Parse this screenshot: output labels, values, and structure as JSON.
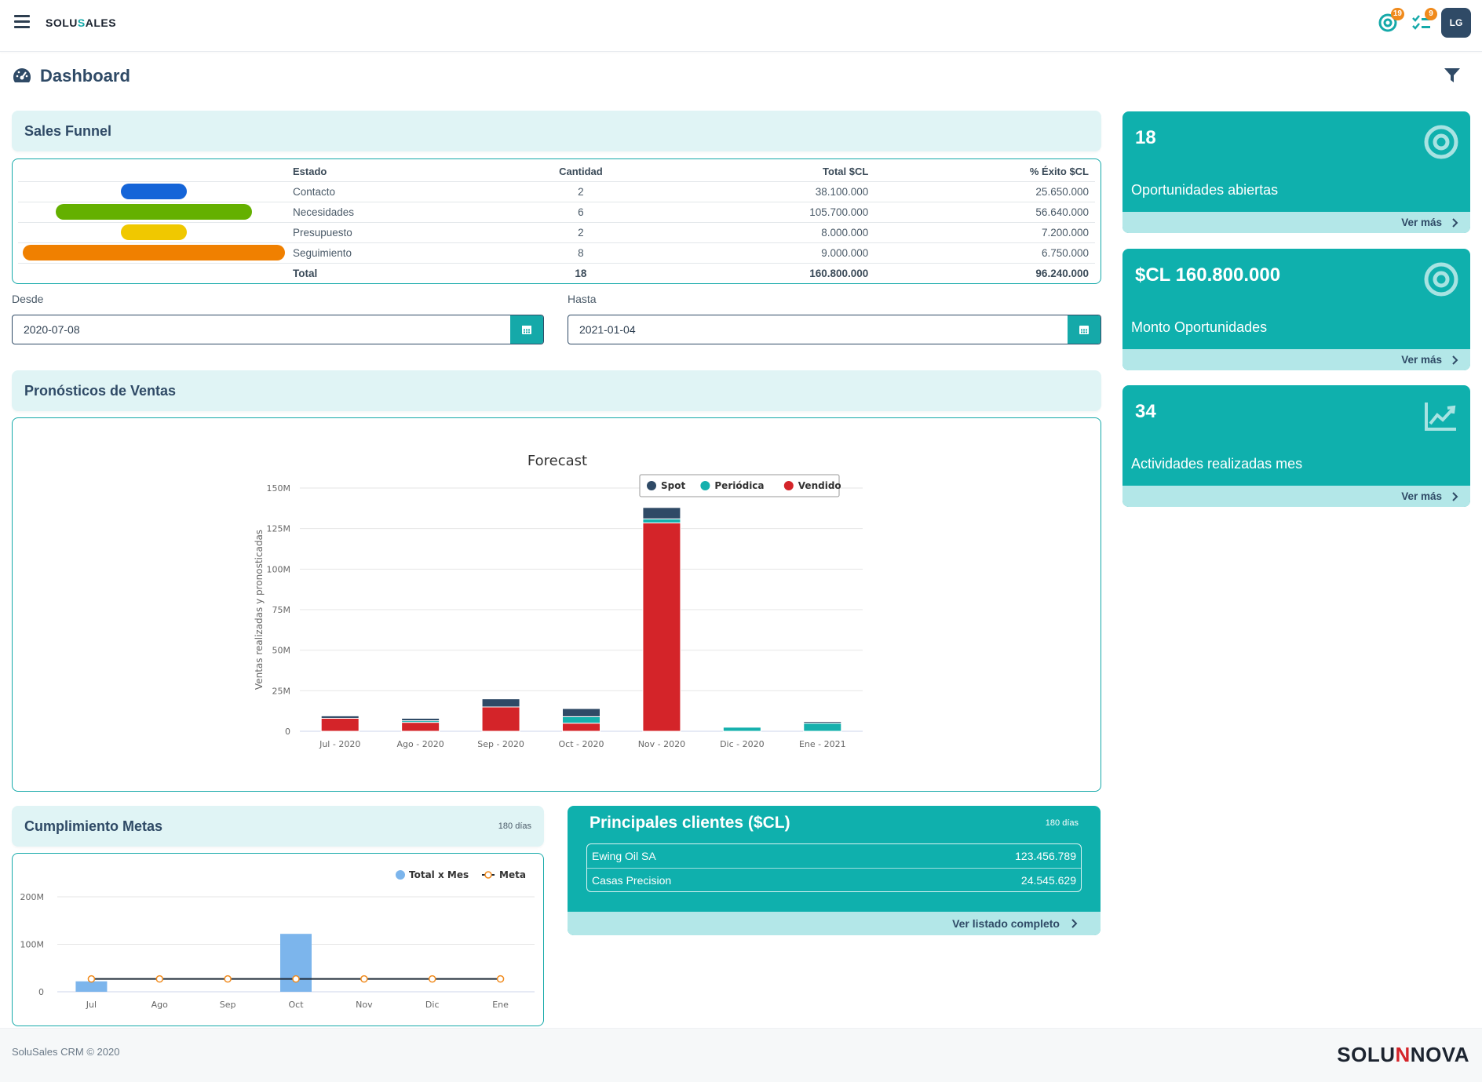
{
  "app": {
    "logo_pre": "SOLU",
    "logo_s": "S",
    "logo_post": "ALES",
    "avatar": "LG",
    "badge_targets": "19",
    "badge_tasks": "9"
  },
  "page": {
    "title": "Dashboard"
  },
  "funnel": {
    "title": "Sales Funnel",
    "headers": [
      "Estado",
      "Cantidad",
      "Total $CL",
      "% Éxito $CL"
    ],
    "rows": [
      {
        "estado": "Contacto",
        "cantidad": "2",
        "total": "38.100.000",
        "exito": "25.650.000",
        "color": "#1565d8",
        "frac": 0.25
      },
      {
        "estado": "Necesidades",
        "cantidad": "6",
        "total": "105.700.000",
        "exito": "56.640.000",
        "color": "#64b000",
        "frac": 0.75
      },
      {
        "estado": "Presupuesto",
        "cantidad": "2",
        "total": "8.000.000",
        "exito": "7.200.000",
        "color": "#f0c800",
        "frac": 0.25
      },
      {
        "estado": "Seguimiento",
        "cantidad": "8",
        "total": "9.000.000",
        "exito": "6.750.000",
        "color": "#f08000",
        "frac": 1.0
      }
    ],
    "total": {
      "label": "Total",
      "cantidad": "18",
      "total": "160.800.000",
      "exito": "96.240.000"
    }
  },
  "dates": {
    "desde_label": "Desde",
    "desde": "2020-07-08",
    "hasta_label": "Hasta",
    "hasta": "2021-01-04"
  },
  "forecast": {
    "section_title": "Pronósticos de Ventas"
  },
  "metas": {
    "title": "Cumplimiento Metas",
    "days": "180 días"
  },
  "kpis": [
    {
      "value": "18",
      "label": "Oportunidades abiertas",
      "link": "Ver más",
      "icon": "target-icon"
    },
    {
      "value": "$CL 160.800.000",
      "label": "Monto Oportunidades",
      "link": "Ver más",
      "icon": "target-icon"
    },
    {
      "value": "34",
      "label": "Actividades realizadas mes",
      "link": "Ver más",
      "icon": "trend-chart-icon"
    }
  ],
  "clients": {
    "title": "Principales clientes ($CL)",
    "days": "180 días",
    "rows": [
      {
        "name": "Ewing Oil SA",
        "amount": "123.456.789"
      },
      {
        "name": "Casas Precision",
        "amount": "24.545.629"
      }
    ],
    "link": "Ver listado completo"
  },
  "footer": {
    "copy": "SoluSales CRM © 2020",
    "brand_pre": "SOLU",
    "brand_n": "N",
    "brand_post": "NOVA"
  },
  "chart_data": [
    {
      "type": "bar",
      "stacked": true,
      "title": "Forecast",
      "ylabel": "Ventas realizadas y pronosticadas",
      "categories": [
        "Jul - 2020",
        "Ago - 2020",
        "Sep - 2020",
        "Oct - 2020",
        "Nov - 2020",
        "Dic - 2020",
        "Ene - 2021"
      ],
      "ylim": [
        0,
        150000000
      ],
      "yticks": [
        "0",
        "25M",
        "50M",
        "75M",
        "100M",
        "125M",
        "150M"
      ],
      "legend_position": "top-right",
      "series": [
        {
          "name": "Vendido",
          "color": "#d42429",
          "values": [
            8000000,
            5500000,
            15000000,
            5000000,
            128500000,
            0,
            0
          ]
        },
        {
          "name": "Periódica",
          "color": "#15b0ad",
          "values": [
            0,
            1000000,
            0,
            4000000,
            2500000,
            2500000,
            5000000
          ]
        },
        {
          "name": "Spot",
          "color": "#2f4a66",
          "values": [
            1500000,
            1500000,
            5000000,
            5000000,
            7000000,
            0,
            1000000
          ]
        }
      ],
      "legend_order": [
        "Spot",
        "Periódica",
        "Vendido"
      ],
      "grid": true
    },
    {
      "type": "bar",
      "title": "",
      "categories": [
        "Jul",
        "Ago",
        "Sep",
        "Oct",
        "Nov",
        "Dic",
        "Ene"
      ],
      "ylim": [
        0,
        200000000
      ],
      "yticks": [
        "0",
        "100M",
        "200M"
      ],
      "legend_position": "top-right",
      "series": [
        {
          "name": "Total x Mes",
          "kind": "bar",
          "color": "#7cb5ec",
          "values": [
            22000000,
            0,
            0,
            122000000,
            0,
            0,
            0
          ]
        },
        {
          "name": "Meta",
          "kind": "line",
          "color": "#f08a1c",
          "values": [
            27000000,
            27000000,
            27000000,
            27000000,
            27000000,
            27000000,
            27000000
          ]
        }
      ],
      "grid": true
    }
  ]
}
